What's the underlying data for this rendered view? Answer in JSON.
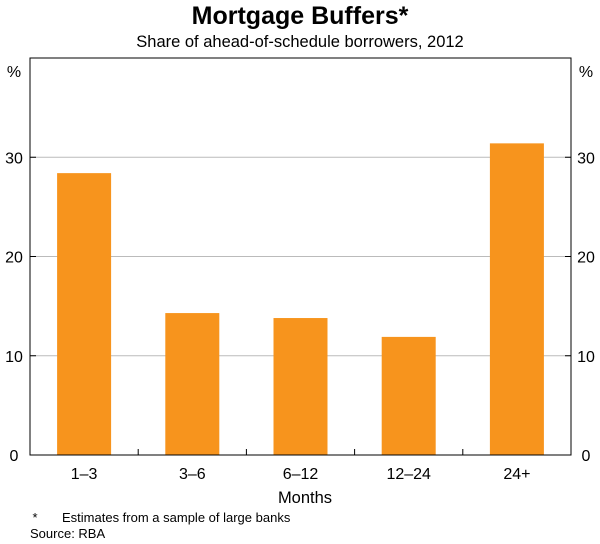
{
  "chart_data": {
    "type": "bar",
    "title": "Mortgage Buffers*",
    "subtitle": "Share of ahead-of-schedule borrowers, 2012",
    "categories": [
      "1–3",
      "3–6",
      "6–12",
      "12–24",
      "24+"
    ],
    "values": [
      28.4,
      14.3,
      13.8,
      11.9,
      31.4
    ],
    "xlabel": "Months",
    "ylabel_left": "%",
    "ylabel_right": "%",
    "ylim": [
      0,
      40
    ],
    "yticks": [
      0,
      10,
      20,
      30
    ],
    "grid": true,
    "bar_color": "#F7941D",
    "grid_color": "#BBBBBB",
    "footnotes": {
      "marker": "*",
      "note": "Estimates from a sample of large banks",
      "source": "Source: RBA"
    }
  }
}
